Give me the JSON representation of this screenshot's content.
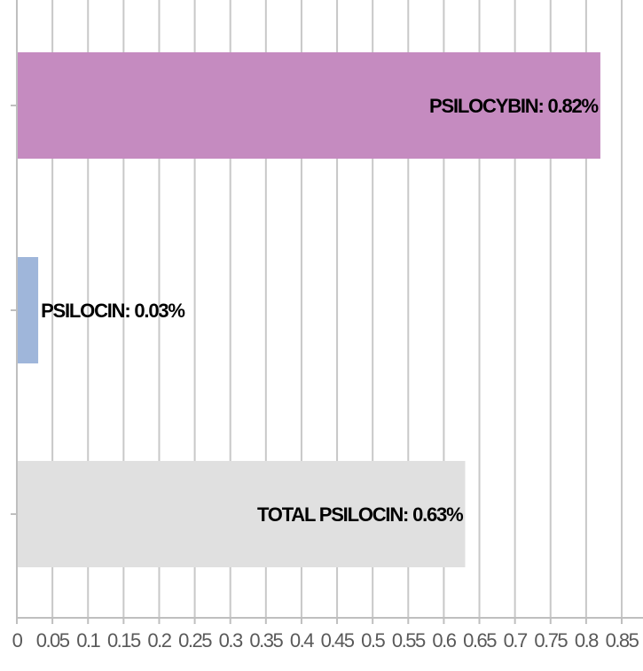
{
  "chart_data": {
    "type": "bar",
    "orientation": "horizontal",
    "categories": [
      "PSILOCYBIN",
      "PSILOCIN",
      "TOTAL PSILOCIN"
    ],
    "values": [
      0.82,
      0.03,
      0.63
    ],
    "data_labels": [
      "PSILOCYBIN: 0.82%",
      "PSILOCIN: 0.03%",
      "TOTAL PSILOCIN: 0.63%"
    ],
    "bar_colors": [
      "#c58bc0",
      "#9fb6da",
      "#e0e0e0"
    ],
    "xlim": [
      0,
      0.85
    ],
    "xticks": [
      0,
      0.05,
      0.1,
      0.15,
      0.2,
      0.25,
      0.3,
      0.35,
      0.4,
      0.45,
      0.5,
      0.55,
      0.6,
      0.65,
      0.7,
      0.75,
      0.8,
      0.85
    ],
    "xtick_labels": [
      "0",
      "0.05",
      "0.1",
      "0.15",
      "0.2",
      "0.25",
      "0.3",
      "0.35",
      "0.4",
      "0.45",
      "0.5",
      "0.55",
      "0.6",
      "0.65",
      "0.7",
      "0.75",
      "0.8",
      "0.85"
    ],
    "grid": true,
    "gridline_color": "#c8c8c8",
    "axis_color": "#bfbfbf",
    "title": "",
    "xlabel": "",
    "ylabel": "",
    "legend": false
  }
}
